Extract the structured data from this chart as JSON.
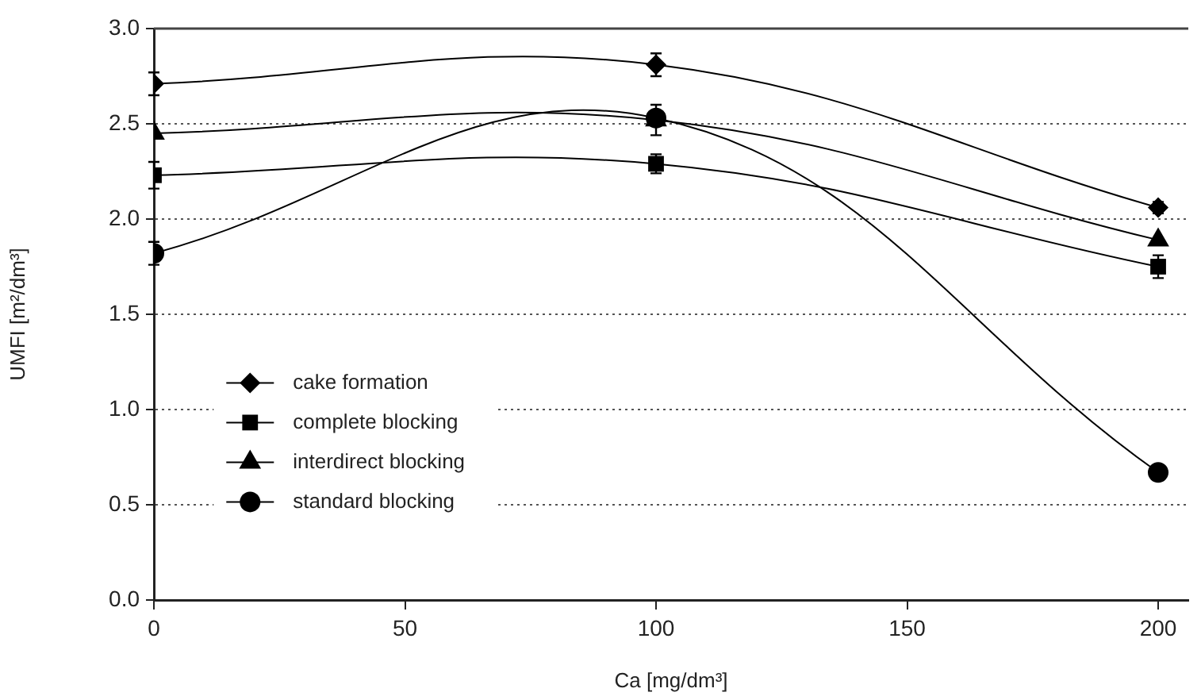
{
  "chart_data": {
    "type": "line",
    "xlabel": "Ca [mg/dm³]",
    "ylabel": "UMFI [m²/dm³]",
    "x": [
      0,
      100,
      200
    ],
    "xlim": [
      0,
      206
    ],
    "xticks": [
      0,
      50,
      100,
      150,
      200
    ],
    "ylim": [
      0,
      3
    ],
    "yticks": [
      {
        "value": 0,
        "label": "0.0"
      },
      0.5,
      {
        "value": 1,
        "label": "1.0"
      },
      1.5,
      {
        "value": 2,
        "label": "2.0"
      },
      2.5,
      {
        "value": 3,
        "label": "3.0"
      }
    ],
    "grid": "y",
    "legend": "left",
    "line_style": "solid",
    "series": [
      {
        "name": "cake formation",
        "color": "#000000",
        "marker": "diamond",
        "values": [
          2.71,
          2.81,
          2.06
        ],
        "errors": [
          0.06,
          0.06,
          0.03
        ]
      },
      {
        "name": "complete blocking",
        "color": "#000000",
        "marker": "square",
        "values": [
          2.23,
          2.29,
          1.75
        ],
        "errors": [
          0.07,
          0.05,
          0.06
        ]
      },
      {
        "name": "interdirect blocking",
        "color": "#000000",
        "marker": "triangle",
        "values": [
          2.45,
          2.52,
          1.89
        ],
        "errors": [
          null,
          0.08,
          null
        ]
      },
      {
        "name": "standard blocking",
        "color": "#000000",
        "marker": "circle",
        "values": [
          1.82,
          2.53,
          0.67
        ],
        "errors": [
          0.06,
          null,
          null
        ]
      }
    ]
  }
}
